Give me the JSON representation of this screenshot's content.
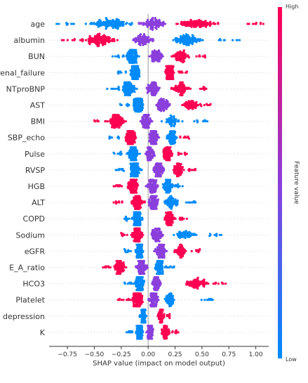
{
  "chart_data": {
    "type": "scatter",
    "subtype": "shap_beeswarm",
    "xlabel": "SHAP value (impact on model output)",
    "xlim": [
      -0.92,
      1.12
    ],
    "xticks": [
      -0.75,
      -0.5,
      -0.25,
      0.0,
      0.25,
      0.5,
      0.75,
      1.0
    ],
    "xtick_labels": [
      "−0.75",
      "−0.50",
      "−0.25",
      "0.00",
      "0.25",
      "0.50",
      "0.75",
      "1.00"
    ],
    "zero_line": true,
    "colorbar": {
      "title": "Feature value",
      "high_label": "High",
      "low_label": "Low",
      "high_color": "#ff0052",
      "mid_color": "#8b3fdc",
      "low_color": "#008bfb"
    },
    "features": [
      {
        "name": "age",
        "min": -0.85,
        "max": 1.07,
        "left_color": "low",
        "right_color": "high",
        "clusters": [
          {
            "center": -0.35,
            "width": 0.3,
            "count": 130,
            "color": "low"
          },
          {
            "center": 0.05,
            "width": 0.18,
            "count": 90,
            "color": "mid"
          },
          {
            "center": 0.45,
            "width": 0.28,
            "count": 110,
            "color": "high"
          }
        ]
      },
      {
        "name": "albumin",
        "min": -0.8,
        "max": 0.85,
        "left_color": "high",
        "right_color": "low",
        "clusters": [
          {
            "center": -0.45,
            "width": 0.22,
            "count": 120,
            "color": "high"
          },
          {
            "center": -0.05,
            "width": 0.15,
            "count": 80,
            "color": "mid"
          },
          {
            "center": 0.35,
            "width": 0.22,
            "count": 110,
            "color": "low"
          }
        ]
      },
      {
        "name": "BUN",
        "min": -0.33,
        "max": 0.53,
        "left_color": "low",
        "right_color": "high",
        "clusters": [
          {
            "center": -0.15,
            "width": 0.09,
            "count": 110,
            "color": "low"
          },
          {
            "center": 0.08,
            "width": 0.1,
            "count": 70,
            "color": "mid"
          },
          {
            "center": 0.3,
            "width": 0.12,
            "count": 70,
            "color": "high"
          }
        ]
      },
      {
        "name": "renal_failure",
        "min": -0.28,
        "max": 0.36,
        "left_color": "low",
        "right_color": "high",
        "clusters": [
          {
            "center": -0.12,
            "width": 0.06,
            "count": 180,
            "color": "low"
          },
          {
            "center": 0.2,
            "width": 0.07,
            "count": 140,
            "color": "high"
          }
        ]
      },
      {
        "name": "NTproBNP",
        "min": -0.38,
        "max": 0.54,
        "left_color": "low",
        "right_color": "high",
        "clusters": [
          {
            "center": -0.18,
            "width": 0.1,
            "count": 110,
            "color": "low"
          },
          {
            "center": 0.05,
            "width": 0.1,
            "count": 90,
            "color": "mid"
          },
          {
            "center": 0.3,
            "width": 0.11,
            "count": 80,
            "color": "high"
          }
        ]
      },
      {
        "name": "AST",
        "min": -0.26,
        "max": 0.58,
        "left_color": "low",
        "right_color": "high",
        "clusters": [
          {
            "center": -0.09,
            "width": 0.07,
            "count": 150,
            "color": "low"
          },
          {
            "center": 0.14,
            "width": 0.1,
            "count": 80,
            "color": "mid"
          },
          {
            "center": 0.4,
            "width": 0.12,
            "count": 60,
            "color": "high"
          }
        ]
      },
      {
        "name": "BMI",
        "min": -0.5,
        "max": 0.55,
        "left_color": "high",
        "right_color": "low",
        "clusters": [
          {
            "center": -0.3,
            "width": 0.13,
            "count": 100,
            "color": "high"
          },
          {
            "center": -0.02,
            "width": 0.07,
            "count": 120,
            "color": "mid"
          },
          {
            "center": 0.22,
            "width": 0.12,
            "count": 50,
            "color": "low"
          }
        ]
      },
      {
        "name": "SBP_echo",
        "min": -0.36,
        "max": 0.38,
        "left_color": "low",
        "right_color": "high",
        "clusters": [
          {
            "center": -0.16,
            "width": 0.08,
            "count": 110,
            "color": "high"
          },
          {
            "center": 0.05,
            "width": 0.08,
            "count": 90,
            "color": "mid"
          },
          {
            "center": 0.22,
            "width": 0.08,
            "count": 70,
            "color": "low"
          }
        ]
      },
      {
        "name": "Pulse",
        "min": -0.32,
        "max": 0.36,
        "left_color": "low",
        "right_color": "high",
        "clusters": [
          {
            "center": -0.14,
            "width": 0.08,
            "count": 110,
            "color": "low"
          },
          {
            "center": 0.02,
            "width": 0.07,
            "count": 80,
            "color": "mid"
          },
          {
            "center": 0.18,
            "width": 0.07,
            "count": 90,
            "color": "high"
          }
        ]
      },
      {
        "name": "RVSP",
        "min": -0.3,
        "max": 0.44,
        "left_color": "low",
        "right_color": "high",
        "clusters": [
          {
            "center": -0.12,
            "width": 0.08,
            "count": 120,
            "color": "low"
          },
          {
            "center": 0.1,
            "width": 0.08,
            "count": 90,
            "color": "mid"
          },
          {
            "center": 0.28,
            "width": 0.08,
            "count": 70,
            "color": "high"
          }
        ]
      },
      {
        "name": "HGB",
        "min": -0.32,
        "max": 0.32,
        "left_color": "high",
        "right_color": "low",
        "clusters": [
          {
            "center": -0.14,
            "width": 0.08,
            "count": 110,
            "color": "high"
          },
          {
            "center": 0.04,
            "width": 0.07,
            "count": 90,
            "color": "mid"
          },
          {
            "center": 0.18,
            "width": 0.07,
            "count": 70,
            "color": "low"
          }
        ]
      },
      {
        "name": "ALT",
        "min": -0.32,
        "max": 0.44,
        "left_color": "high",
        "right_color": "low",
        "clusters": [
          {
            "center": -0.1,
            "width": 0.08,
            "count": 110,
            "color": "high"
          },
          {
            "center": 0.05,
            "width": 0.07,
            "count": 90,
            "color": "mid"
          },
          {
            "center": 0.22,
            "width": 0.1,
            "count": 70,
            "color": "low"
          }
        ]
      },
      {
        "name": "COPD",
        "min": -0.22,
        "max": 0.36,
        "left_color": "low",
        "right_color": "high",
        "clusters": [
          {
            "center": -0.1,
            "width": 0.06,
            "count": 140,
            "color": "low"
          },
          {
            "center": 0.2,
            "width": 0.08,
            "count": 90,
            "color": "high"
          }
        ]
      },
      {
        "name": "Sodium",
        "min": -0.25,
        "max": 0.68,
        "left_color": "high",
        "right_color": "low",
        "clusters": [
          {
            "center": -0.1,
            "width": 0.08,
            "count": 130,
            "color": "high"
          },
          {
            "center": 0.08,
            "width": 0.08,
            "count": 80,
            "color": "mid"
          },
          {
            "center": 0.35,
            "width": 0.15,
            "count": 60,
            "color": "low"
          }
        ]
      },
      {
        "name": "eGFR",
        "min": -0.22,
        "max": 0.48,
        "left_color": "low",
        "right_color": "high",
        "clusters": [
          {
            "center": -0.08,
            "width": 0.06,
            "count": 130,
            "color": "low"
          },
          {
            "center": 0.12,
            "width": 0.08,
            "count": 90,
            "color": "mid"
          },
          {
            "center": 0.3,
            "width": 0.08,
            "count": 60,
            "color": "high"
          }
        ]
      },
      {
        "name": "E_A_ratio",
        "min": -0.42,
        "max": 0.24,
        "left_color": "high",
        "right_color": "low",
        "clusters": [
          {
            "center": -0.26,
            "width": 0.08,
            "count": 80,
            "color": "high"
          },
          {
            "center": -0.06,
            "width": 0.08,
            "count": 100,
            "color": "mid"
          },
          {
            "center": 0.1,
            "width": 0.07,
            "count": 90,
            "color": "low"
          }
        ]
      },
      {
        "name": "HCO3",
        "min": -0.22,
        "max": 0.72,
        "left_color": "low",
        "right_color": "high",
        "clusters": [
          {
            "center": -0.08,
            "width": 0.06,
            "count": 140,
            "color": "low"
          },
          {
            "center": 0.08,
            "width": 0.06,
            "count": 70,
            "color": "mid"
          },
          {
            "center": 0.45,
            "width": 0.16,
            "count": 80,
            "color": "high"
          }
        ]
      },
      {
        "name": "Platelet",
        "min": -0.28,
        "max": 0.6,
        "left_color": "high",
        "right_color": "low",
        "clusters": [
          {
            "center": -0.1,
            "width": 0.08,
            "count": 110,
            "color": "high"
          },
          {
            "center": 0.05,
            "width": 0.07,
            "count": 100,
            "color": "mid"
          },
          {
            "center": 0.2,
            "width": 0.08,
            "count": 60,
            "color": "low"
          }
        ]
      },
      {
        "name": "depression",
        "min": -0.08,
        "max": 0.2,
        "left_color": "low",
        "right_color": "high",
        "clusters": [
          {
            "center": -0.04,
            "width": 0.03,
            "count": 110,
            "color": "low"
          },
          {
            "center": 0.12,
            "width": 0.04,
            "count": 60,
            "color": "high"
          }
        ]
      },
      {
        "name": "K",
        "min": -0.2,
        "max": 0.28,
        "left_color": "low",
        "right_color": "high",
        "clusters": [
          {
            "center": -0.08,
            "width": 0.05,
            "count": 120,
            "color": "low"
          },
          {
            "center": 0.02,
            "width": 0.05,
            "count": 100,
            "color": "mid"
          },
          {
            "center": 0.16,
            "width": 0.06,
            "count": 70,
            "color": "high"
          }
        ]
      }
    ]
  }
}
